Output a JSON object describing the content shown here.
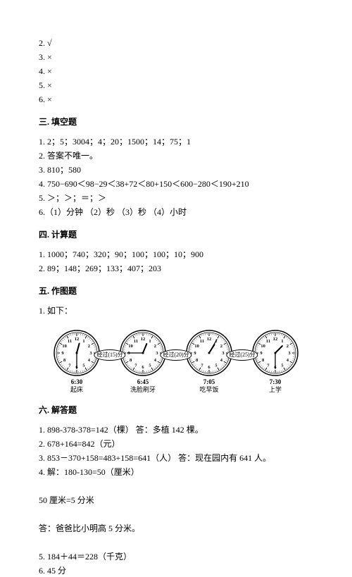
{
  "answers_top": [
    "2. √",
    "3. ×",
    "4. ×",
    "5. ×",
    "6. ×"
  ],
  "section3": {
    "title": "三. 填空题",
    "lines": [
      "1. 2；5；3004；4；20；1500；14；75；1",
      "2. 答案不唯一。",
      "3. 810；580",
      "4. 750−690＜98−29＜38+72＜80+150＜600−280＜190+210",
      "5. ＞；＞；＝；＞",
      "6.（1）分钟 （2）秒 （3）秒 （4）小时"
    ]
  },
  "section4": {
    "title": "四. 计算题",
    "lines": [
      "1. 1000；740；320；90；100；100；10；900",
      "2. 89；148；269；133；407；203"
    ]
  },
  "section5": {
    "title": "五. 作图题",
    "lead": "1. 如下："
  },
  "clocks": [
    {
      "hour_angle": 15,
      "minute_angle": 180,
      "time": "6:30",
      "label": "起床"
    },
    {
      "hour_angle": 22.5,
      "minute_angle": 270,
      "time": "6:45",
      "label": "洗脸刷牙"
    },
    {
      "hour_angle": 32.5,
      "minute_angle": 30,
      "time": "7:05",
      "label": "吃早饭"
    },
    {
      "hour_angle": 45,
      "minute_angle": 180,
      "time": "7:30",
      "label": "上学"
    }
  ],
  "connectors": [
    "经过(15)分",
    "经过(20)分",
    "经过(25)分"
  ],
  "clock_style": {
    "radius": 30,
    "outer_stroke": "#000",
    "bg": "#fff",
    "num_font": 6.5,
    "minute_len": 22,
    "hour_len": 14
  },
  "section6": {
    "title": "六. 解答题",
    "lines": [
      "1. 898-378-378=142（棵）  答：多植 142 棵。",
      "2. 678+164=842（元）",
      "3. 853－370+158=483+158=641（人）  答：现在园内有 641 人。",
      "4. 解：180-130=50（厘米）",
      "",
      "50 厘米=5 分米",
      "",
      "答：爸爸比小明高 5 分米。",
      "",
      "5. 184＋44＝228（千克）",
      "6. 45 分"
    ]
  }
}
